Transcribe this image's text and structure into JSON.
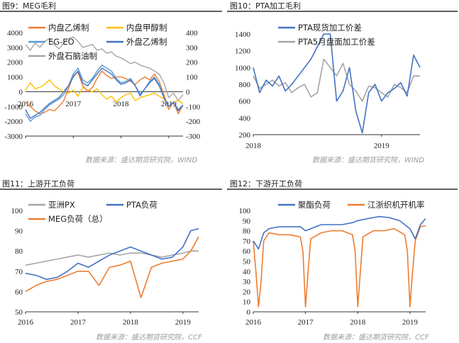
{
  "source_left": "数据来源：盛达期货研究院，WIND",
  "source_right": "数据来源：盛达期货研究院，WIND",
  "source_bottom_left": "数据来源：盛达期货研究院，CCF",
  "source_bottom_right": "数据来源：盛达期货研究院，CCF",
  "chart_data": [
    {
      "id": "fig9",
      "type": "line",
      "title": "图9：MEG毛利",
      "x_ticks": [
        "2016",
        "2017",
        "2018",
        "2019"
      ],
      "xlim": [
        2016.0,
        2019.3
      ],
      "ylim_left": [
        -3000,
        4000
      ],
      "y_ticks_left": [
        -3000,
        -2000,
        -1000,
        0,
        1000,
        2000,
        3000,
        4000
      ],
      "ylim_right": [
        -300,
        400
      ],
      "y_ticks_right": [
        -300,
        -200,
        -100,
        0,
        100,
        200,
        300,
        400
      ],
      "series": [
        {
          "name": "内盘乙烯制",
          "color": "#ED7D31",
          "axis": "left",
          "x": [
            2016.0,
            2016.1,
            2016.2,
            2016.3,
            2016.4,
            2016.5,
            2016.6,
            2016.7,
            2016.8,
            2016.9,
            2017.0,
            2017.1,
            2017.2,
            2017.3,
            2017.4,
            2017.5,
            2017.6,
            2017.7,
            2017.8,
            2017.9,
            2018.0,
            2018.1,
            2018.2,
            2018.3,
            2018.4,
            2018.5,
            2018.6,
            2018.7,
            2018.8,
            2018.9,
            2019.0,
            2019.1,
            2019.2,
            2019.3
          ],
          "values": [
            -700,
            -1000,
            -1300,
            -1500,
            -1400,
            -1200,
            -1300,
            -1000,
            -600,
            200,
            1100,
            1300,
            400,
            0,
            300,
            900,
            1400,
            1100,
            900,
            1000,
            1000,
            900,
            700,
            500,
            800,
            1000,
            800,
            1200,
            700,
            -200,
            -1200,
            -700,
            -1500,
            -900
          ]
        },
        {
          "name": "内盘甲醇制",
          "color": "#FFC000",
          "axis": "left",
          "x": [
            2016.0,
            2016.1,
            2016.2,
            2016.3,
            2016.4,
            2016.5,
            2016.6,
            2016.7,
            2016.8,
            2016.9,
            2017.0,
            2017.1,
            2017.2,
            2017.3,
            2017.4,
            2017.5,
            2017.6,
            2017.7,
            2017.8,
            2017.9,
            2018.0,
            2018.1,
            2018.2,
            2018.3,
            2018.4,
            2018.5,
            2018.6,
            2018.7,
            2018.8,
            2018.9,
            2019.0,
            2019.1,
            2019.2,
            2019.3
          ],
          "values": [
            100,
            600,
            200,
            300,
            500,
            800,
            400,
            200,
            0,
            -100,
            100,
            -300,
            300,
            100,
            0,
            200,
            -200,
            -500,
            -300,
            -700,
            -400,
            -200,
            -100,
            -600,
            -400,
            -300,
            -200,
            -100,
            -300,
            -500,
            -1000,
            -700,
            -600,
            -800
          ]
        },
        {
          "name": "EG-EO",
          "color": "#5B9BD5",
          "axis": "left",
          "x": [
            2016.0,
            2016.1,
            2016.2,
            2016.3,
            2016.4,
            2016.5,
            2016.6,
            2016.7,
            2016.8,
            2016.9,
            2017.0,
            2017.1,
            2017.2,
            2017.3,
            2017.4,
            2017.5,
            2017.6,
            2017.7,
            2017.8,
            2017.9,
            2018.0,
            2018.1,
            2018.2,
            2018.3,
            2018.4,
            2018.5,
            2018.6,
            2018.7,
            2018.8,
            2018.9,
            2019.0,
            2019.1,
            2019.2,
            2019.3
          ],
          "values": [
            -1500,
            -2000,
            -1700,
            -1600,
            -1200,
            -900,
            -700,
            -500,
            -200,
            400,
            1200,
            1600,
            800,
            600,
            900,
            1400,
            1800,
            1600,
            1400,
            900,
            600,
            700,
            900,
            400,
            -300,
            200,
            700,
            1000,
            500,
            -400,
            -1000,
            -700,
            -1200,
            -900
          ]
        },
        {
          "name": "外盘乙烯制",
          "color": "#4472C4",
          "axis": "right",
          "x": [
            2016.0,
            2016.1,
            2016.2,
            2016.3,
            2016.4,
            2016.5,
            2016.6,
            2016.7,
            2016.8,
            2016.9,
            2017.0,
            2017.1,
            2017.2,
            2017.3,
            2017.4,
            2017.5,
            2017.6,
            2017.7,
            2017.8,
            2017.9,
            2018.0,
            2018.1,
            2018.2,
            2018.3,
            2018.4,
            2018.5,
            2018.6,
            2018.7,
            2018.8,
            2018.9,
            2019.0,
            2019.1,
            2019.2,
            2019.3
          ],
          "values": [
            -120,
            -180,
            -160,
            -140,
            -110,
            -80,
            -60,
            -40,
            0,
            40,
            100,
            140,
            60,
            40,
            80,
            120,
            160,
            140,
            120,
            80,
            50,
            60,
            80,
            40,
            -20,
            20,
            60,
            90,
            40,
            -40,
            -100,
            -70,
            -130,
            -90
          ]
        },
        {
          "name": "外盘石脑油制",
          "color": "#A5A5A5",
          "axis": "right",
          "x": [
            2016.0,
            2016.1,
            2016.2,
            2016.3,
            2016.4,
            2016.5,
            2016.6,
            2016.7,
            2016.8,
            2016.9,
            2017.0,
            2017.1,
            2017.2,
            2017.3,
            2017.4,
            2017.5,
            2017.6,
            2017.7,
            2017.8,
            2017.9,
            2018.0,
            2018.1,
            2018.2,
            2018.3,
            2018.4,
            2018.5,
            2018.6,
            2018.7,
            2018.8,
            2018.9,
            2019.0,
            2019.1,
            2019.2,
            2019.3
          ],
          "values": [
            320,
            280,
            330,
            300,
            340,
            360,
            320,
            290,
            330,
            360,
            370,
            340,
            300,
            310,
            320,
            280,
            290,
            260,
            270,
            240,
            230,
            210,
            190,
            200,
            180,
            170,
            160,
            140,
            120,
            60,
            -40,
            -10,
            -60,
            -20
          ]
        }
      ]
    },
    {
      "id": "fig10",
      "type": "line",
      "title": "图10：PTA加工毛利",
      "x_ticks": [
        "2018",
        "2019"
      ],
      "xlim": [
        2018.0,
        2019.3
      ],
      "ylim": [
        200,
        1400
      ],
      "y_ticks": [
        200,
        400,
        600,
        800,
        1000,
        1200,
        1400
      ],
      "series": [
        {
          "name": "PTA现货加工价差",
          "color": "#4472C4",
          "x": [
            2018.0,
            2018.05,
            2018.1,
            2018.15,
            2018.2,
            2018.25,
            2018.3,
            2018.35,
            2018.4,
            2018.45,
            2018.5,
            2018.55,
            2018.6,
            2018.65,
            2018.7,
            2018.75,
            2018.8,
            2018.85,
            2018.9,
            2018.95,
            2019.0,
            2019.05,
            2019.1,
            2019.15,
            2019.2,
            2019.25,
            2019.3
          ],
          "values": [
            1000,
            700,
            850,
            780,
            900,
            720,
            800,
            900,
            1000,
            1100,
            1250,
            1400,
            1400,
            600,
            720,
            1000,
            480,
            220,
            700,
            800,
            600,
            700,
            750,
            820,
            660,
            1150,
            1000
          ]
        },
        {
          "name": "PTA5月盘面加工价差",
          "color": "#A5A5A5",
          "x": [
            2018.0,
            2018.05,
            2018.1,
            2018.15,
            2018.2,
            2018.25,
            2018.3,
            2018.35,
            2018.4,
            2018.45,
            2018.5,
            2018.55,
            2018.6,
            2018.65,
            2018.7,
            2018.75,
            2018.8,
            2018.85,
            2018.9,
            2018.95,
            2019.0,
            2019.05,
            2019.1,
            2019.15,
            2019.2,
            2019.25,
            2019.3
          ],
          "values": [
            900,
            750,
            800,
            850,
            780,
            820,
            700,
            760,
            800,
            650,
            700,
            1100,
            1000,
            900,
            1050,
            800,
            720,
            600,
            780,
            760,
            700,
            650,
            800,
            760,
            700,
            900,
            900
          ]
        }
      ]
    },
    {
      "id": "fig11",
      "type": "line",
      "title": "图11：上游开工负荷",
      "x_ticks": [
        "2016",
        "2017",
        "2018",
        "2019"
      ],
      "xlim": [
        2016.0,
        2019.3
      ],
      "ylim": [
        50,
        100
      ],
      "y_ticks": [
        50,
        60,
        70,
        80,
        90,
        100
      ],
      "series": [
        {
          "name": "亚洲PX",
          "color": "#A5A5A5",
          "x": [
            2016.0,
            2016.2,
            2016.4,
            2016.6,
            2016.8,
            2017.0,
            2017.2,
            2017.4,
            2017.6,
            2017.8,
            2018.0,
            2018.2,
            2018.4,
            2018.6,
            2018.8,
            2019.0,
            2019.15,
            2019.3
          ],
          "values": [
            73,
            74,
            75,
            76,
            77,
            78,
            77,
            78,
            79,
            78,
            79,
            79,
            78,
            77,
            78,
            79,
            80,
            80
          ]
        },
        {
          "name": "PTA负荷",
          "color": "#4472C4",
          "x": [
            2016.0,
            2016.2,
            2016.4,
            2016.6,
            2016.8,
            2017.0,
            2017.2,
            2017.4,
            2017.6,
            2017.8,
            2018.0,
            2018.2,
            2018.4,
            2018.6,
            2018.8,
            2019.0,
            2019.15,
            2019.3
          ],
          "values": [
            69,
            68,
            66,
            67,
            70,
            74,
            72,
            75,
            78,
            80,
            82,
            80,
            78,
            76,
            77,
            82,
            90,
            91
          ]
        },
        {
          "name": "MEG负荷（总）",
          "color": "#ED7D31",
          "x": [
            2016.0,
            2016.2,
            2016.4,
            2016.6,
            2016.8,
            2017.0,
            2017.2,
            2017.4,
            2017.6,
            2017.8,
            2018.0,
            2018.2,
            2018.4,
            2018.6,
            2018.8,
            2019.0,
            2019.15,
            2019.3
          ],
          "values": [
            60,
            63,
            65,
            66,
            68,
            70,
            70,
            63,
            72,
            73,
            75,
            57,
            72,
            74,
            75,
            76,
            80,
            87
          ]
        }
      ]
    },
    {
      "id": "fig12",
      "type": "line",
      "title": "图12：下游开工负荷",
      "x_ticks": [
        "2016",
        "2017",
        "2018",
        "2019"
      ],
      "xlim": [
        2016.0,
        2019.3
      ],
      "ylim": [
        0,
        100
      ],
      "y_ticks": [
        0,
        10,
        20,
        30,
        40,
        50,
        60,
        70,
        80,
        90,
        100
      ],
      "series": [
        {
          "name": "聚酯负荷",
          "color": "#4472C4",
          "x": [
            2016.0,
            2016.1,
            2016.2,
            2016.3,
            2016.5,
            2016.7,
            2016.9,
            2017.0,
            2017.1,
            2017.3,
            2017.5,
            2017.7,
            2017.9,
            2018.0,
            2018.2,
            2018.4,
            2018.6,
            2018.8,
            2019.0,
            2019.1,
            2019.2,
            2019.3
          ],
          "values": [
            70,
            62,
            78,
            82,
            84,
            84,
            84,
            80,
            82,
            86,
            86,
            86,
            88,
            90,
            92,
            94,
            93,
            90,
            82,
            72,
            86,
            92
          ]
        },
        {
          "name": "江浙织机开机率",
          "color": "#ED7D31",
          "x": [
            2016.0,
            2016.05,
            2016.1,
            2016.15,
            2016.2,
            2016.3,
            2016.5,
            2016.7,
            2016.9,
            2016.95,
            2017.0,
            2017.05,
            2017.1,
            2017.3,
            2017.5,
            2017.7,
            2017.9,
            2017.95,
            2018.0,
            2018.05,
            2018.1,
            2018.3,
            2018.5,
            2018.7,
            2018.9,
            2018.95,
            2019.0,
            2019.05,
            2019.1,
            2019.2,
            2019.3
          ],
          "values": [
            70,
            40,
            5,
            30,
            70,
            78,
            76,
            76,
            74,
            60,
            5,
            40,
            72,
            78,
            80,
            80,
            76,
            60,
            5,
            40,
            74,
            80,
            80,
            82,
            76,
            60,
            5,
            40,
            70,
            84,
            85
          ]
        }
      ]
    }
  ]
}
